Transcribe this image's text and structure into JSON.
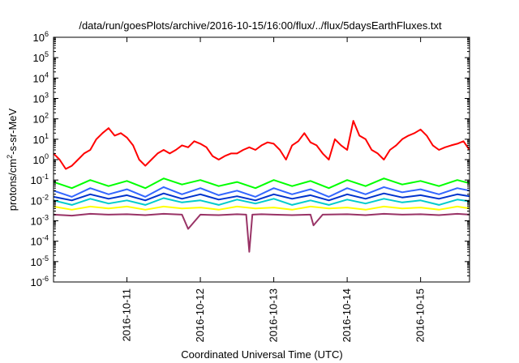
{
  "chart_data": {
    "type": "line",
    "title": "/data/run/goesPlots/archive/2016-10-15/16:00/flux/../flux/5daysEarthFluxes.txt",
    "xlabel": "Coordinated Universal Time (UTC)",
    "ylabel": {
      "pre": "protons/cm",
      "sup": "2",
      "post": "-s-sr-MeV"
    },
    "yscale": "log",
    "ylim": [
      1e-06,
      1000000.0
    ],
    "xlim": [
      "2016-10-10T00:00",
      "2016-10-15T16:00"
    ],
    "y_ticks": [
      {
        "value": 1e-06,
        "base": "10",
        "exp": "-6"
      },
      {
        "value": 1e-05,
        "base": "10",
        "exp": "-5"
      },
      {
        "value": 0.0001,
        "base": "10",
        "exp": "-4"
      },
      {
        "value": 0.001,
        "base": "10",
        "exp": "-3"
      },
      {
        "value": 0.01,
        "base": "10",
        "exp": "-2"
      },
      {
        "value": 0.1,
        "base": "10",
        "exp": "-1"
      },
      {
        "value": 1,
        "base": "10",
        "exp": "0"
      },
      {
        "value": 10.0,
        "base": "10",
        "exp": "1"
      },
      {
        "value": 100.0,
        "base": "10",
        "exp": "2"
      },
      {
        "value": 1000.0,
        "base": "10",
        "exp": "3"
      },
      {
        "value": 10000.0,
        "base": "10",
        "exp": "4"
      },
      {
        "value": 100000.0,
        "base": "10",
        "exp": "5"
      },
      {
        "value": 1000000.0,
        "base": "10",
        "exp": "6"
      }
    ],
    "x_ticks": [
      {
        "value": "2016-10-11T00:00",
        "label": "2016-10-11"
      },
      {
        "value": "2016-10-12T00:00",
        "label": "2016-10-12"
      },
      {
        "value": "2016-10-13T00:00",
        "label": "2016-10-13"
      },
      {
        "value": "2016-10-14T00:00",
        "label": "2016-10-14"
      },
      {
        "value": "2016-10-15T00:00",
        "label": "2016-10-15"
      }
    ],
    "grid": false,
    "legend": "none",
    "series": [
      {
        "color": "#ff0000",
        "x": [
          "2016-10-10T00:00",
          "2016-10-10T02:00",
          "2016-10-10T04:00",
          "2016-10-10T06:00",
          "2016-10-10T08:00",
          "2016-10-10T10:00",
          "2016-10-10T12:00",
          "2016-10-10T14:00",
          "2016-10-10T16:00",
          "2016-10-10T18:00",
          "2016-10-10T20:00",
          "2016-10-10T22:00",
          "2016-10-11T00:00",
          "2016-10-11T02:00",
          "2016-10-11T04:00",
          "2016-10-11T06:00",
          "2016-10-11T08:00",
          "2016-10-11T10:00",
          "2016-10-11T12:00",
          "2016-10-11T14:00",
          "2016-10-11T16:00",
          "2016-10-11T18:00",
          "2016-10-11T20:00",
          "2016-10-11T22:00",
          "2016-10-12T00:00",
          "2016-10-12T02:00",
          "2016-10-12T04:00",
          "2016-10-12T06:00",
          "2016-10-12T08:00",
          "2016-10-12T10:00",
          "2016-10-12T12:00",
          "2016-10-12T14:00",
          "2016-10-12T16:00",
          "2016-10-12T18:00",
          "2016-10-12T20:00",
          "2016-10-12T22:00",
          "2016-10-13T00:00",
          "2016-10-13T02:00",
          "2016-10-13T04:00",
          "2016-10-13T06:00",
          "2016-10-13T08:00",
          "2016-10-13T10:00",
          "2016-10-13T12:00",
          "2016-10-13T14:00",
          "2016-10-13T16:00",
          "2016-10-13T18:00",
          "2016-10-13T20:00",
          "2016-10-13T22:00",
          "2016-10-14T00:00",
          "2016-10-14T02:00",
          "2016-10-14T04:00",
          "2016-10-14T06:00",
          "2016-10-14T08:00",
          "2016-10-14T10:00",
          "2016-10-14T12:00",
          "2016-10-14T14:00",
          "2016-10-14T16:00",
          "2016-10-14T18:00",
          "2016-10-14T20:00",
          "2016-10-14T22:00",
          "2016-10-15T00:00",
          "2016-10-15T02:00",
          "2016-10-15T04:00",
          "2016-10-15T06:00",
          "2016-10-15T08:00",
          "2016-10-15T10:00",
          "2016-10-15T12:00",
          "2016-10-15T14:00",
          "2016-10-15T16:00"
        ],
        "values": [
          2,
          1,
          0.35,
          0.5,
          1,
          2,
          3,
          10,
          20,
          35,
          15,
          20,
          12,
          5,
          1,
          0.5,
          1,
          2,
          3,
          2,
          3,
          5,
          4,
          8,
          6,
          4,
          1.5,
          1,
          1.5,
          2,
          2,
          3,
          4,
          3,
          5,
          7,
          6,
          3,
          1,
          5,
          8,
          20,
          7,
          5,
          2,
          1,
          10,
          5,
          3,
          80,
          15,
          10,
          3,
          2,
          1,
          3,
          5,
          10,
          15,
          20,
          30,
          15,
          5,
          3,
          4,
          5,
          6,
          8,
          3
        ],
        "label_stride": 6
      },
      {
        "color": "#00ff00",
        "x": [
          "2016-10-10T00:00",
          "2016-10-10T06:00",
          "2016-10-10T12:00",
          "2016-10-10T18:00",
          "2016-10-11T00:00",
          "2016-10-11T06:00",
          "2016-10-11T12:00",
          "2016-10-11T18:00",
          "2016-10-12T00:00",
          "2016-10-12T06:00",
          "2016-10-12T12:00",
          "2016-10-12T18:00",
          "2016-10-13T00:00",
          "2016-10-13T06:00",
          "2016-10-13T12:00",
          "2016-10-13T18:00",
          "2016-10-14T00:00",
          "2016-10-14T06:00",
          "2016-10-14T12:00",
          "2016-10-14T18:00",
          "2016-10-15T00:00",
          "2016-10-15T06:00",
          "2016-10-15T12:00",
          "2016-10-15T16:00"
        ],
        "values": [
          0.08,
          0.04,
          0.1,
          0.05,
          0.09,
          0.04,
          0.12,
          0.06,
          0.1,
          0.05,
          0.08,
          0.04,
          0.1,
          0.05,
          0.09,
          0.04,
          0.1,
          0.05,
          0.12,
          0.06,
          0.09,
          0.05,
          0.1,
          0.07
        ]
      },
      {
        "color": "#00cccc",
        "x": [
          "2016-10-10T00:00",
          "2016-10-10T06:00",
          "2016-10-10T12:00",
          "2016-10-10T18:00",
          "2016-10-11T00:00",
          "2016-10-11T06:00",
          "2016-10-11T12:00",
          "2016-10-11T18:00",
          "2016-10-12T00:00",
          "2016-10-12T06:00",
          "2016-10-12T12:00",
          "2016-10-12T18:00",
          "2016-10-13T00:00",
          "2016-10-13T06:00",
          "2016-10-13T12:00",
          "2016-10-13T18:00",
          "2016-10-14T00:00",
          "2016-10-14T06:00",
          "2016-10-14T12:00",
          "2016-10-14T18:00",
          "2016-10-15T00:00",
          "2016-10-15T06:00",
          "2016-10-15T12:00",
          "2016-10-15T16:00"
        ],
        "values": [
          0.01,
          0.006,
          0.012,
          0.007,
          0.01,
          0.006,
          0.013,
          0.008,
          0.01,
          0.006,
          0.011,
          0.007,
          0.012,
          0.006,
          0.01,
          0.006,
          0.011,
          0.007,
          0.012,
          0.008,
          0.01,
          0.006,
          0.011,
          0.009
        ]
      },
      {
        "color": "#3366ff",
        "x": [
          "2016-10-10T00:00",
          "2016-10-10T06:00",
          "2016-10-10T12:00",
          "2016-10-10T18:00",
          "2016-10-11T00:00",
          "2016-10-11T06:00",
          "2016-10-11T12:00",
          "2016-10-11T18:00",
          "2016-10-12T00:00",
          "2016-10-12T06:00",
          "2016-10-12T12:00",
          "2016-10-12T18:00",
          "2016-10-13T00:00",
          "2016-10-13T06:00",
          "2016-10-13T12:00",
          "2016-10-13T18:00",
          "2016-10-14T00:00",
          "2016-10-14T06:00",
          "2016-10-14T12:00",
          "2016-10-14T18:00",
          "2016-10-15T00:00",
          "2016-10-15T06:00",
          "2016-10-15T12:00",
          "2016-10-15T16:00"
        ],
        "values": [
          0.03,
          0.015,
          0.04,
          0.02,
          0.035,
          0.015,
          0.045,
          0.02,
          0.04,
          0.018,
          0.03,
          0.015,
          0.04,
          0.02,
          0.035,
          0.015,
          0.04,
          0.02,
          0.045,
          0.025,
          0.035,
          0.02,
          0.04,
          0.03
        ]
      },
      {
        "color": "#0033cc",
        "x": [
          "2016-10-10T00:00",
          "2016-10-10T06:00",
          "2016-10-10T12:00",
          "2016-10-10T18:00",
          "2016-10-11T00:00",
          "2016-10-11T06:00",
          "2016-10-11T12:00",
          "2016-10-11T18:00",
          "2016-10-12T00:00",
          "2016-10-12T06:00",
          "2016-10-12T12:00",
          "2016-10-12T18:00",
          "2016-10-13T00:00",
          "2016-10-13T06:00",
          "2016-10-13T12:00",
          "2016-10-13T18:00",
          "2016-10-14T00:00",
          "2016-10-14T06:00",
          "2016-10-14T12:00",
          "2016-10-14T18:00",
          "2016-10-15T00:00",
          "2016-10-15T06:00",
          "2016-10-15T12:00",
          "2016-10-15T16:00"
        ],
        "values": [
          0.015,
          0.01,
          0.02,
          0.012,
          0.018,
          0.01,
          0.022,
          0.012,
          0.02,
          0.011,
          0.016,
          0.01,
          0.02,
          0.012,
          0.018,
          0.01,
          0.02,
          0.012,
          0.022,
          0.014,
          0.018,
          0.012,
          0.02,
          0.016
        ]
      },
      {
        "color": "#ffff00",
        "x": [
          "2016-10-10T00:00",
          "2016-10-10T06:00",
          "2016-10-10T12:00",
          "2016-10-10T18:00",
          "2016-10-11T00:00",
          "2016-10-11T06:00",
          "2016-10-11T12:00",
          "2016-10-11T18:00",
          "2016-10-12T00:00",
          "2016-10-12T06:00",
          "2016-10-12T12:00",
          "2016-10-12T18:00",
          "2016-10-13T00:00",
          "2016-10-13T06:00",
          "2016-10-13T12:00",
          "2016-10-13T18:00",
          "2016-10-14T00:00",
          "2016-10-14T06:00",
          "2016-10-14T12:00",
          "2016-10-14T18:00",
          "2016-10-15T00:00",
          "2016-10-15T06:00",
          "2016-10-15T12:00",
          "2016-10-15T16:00"
        ],
        "values": [
          0.005,
          0.0035,
          0.005,
          0.004,
          0.005,
          0.0035,
          0.005,
          0.004,
          0.0045,
          0.0035,
          0.005,
          0.004,
          0.0045,
          0.0035,
          0.005,
          0.004,
          0.0045,
          0.0035,
          0.005,
          0.004,
          0.0045,
          0.0035,
          0.005,
          0.004
        ]
      },
      {
        "color": "#993366",
        "x": [
          "2016-10-10T00:00",
          "2016-10-10T06:00",
          "2016-10-10T12:00",
          "2016-10-10T18:00",
          "2016-10-11T00:00",
          "2016-10-11T06:00",
          "2016-10-11T12:00",
          "2016-10-11T18:00",
          "2016-10-11T20:00",
          "2016-10-12T00:00",
          "2016-10-12T06:00",
          "2016-10-12T12:00",
          "2016-10-12T15:00",
          "2016-10-12T16:00",
          "2016-10-12T17:00",
          "2016-10-12T20:00",
          "2016-10-13T00:00",
          "2016-10-13T06:00",
          "2016-10-13T12:00",
          "2016-10-13T13:00",
          "2016-10-13T16:00",
          "2016-10-14T00:00",
          "2016-10-14T06:00",
          "2016-10-14T12:00",
          "2016-10-14T18:00",
          "2016-10-15T00:00",
          "2016-10-15T06:00",
          "2016-10-15T12:00",
          "2016-10-15T16:00"
        ],
        "values": [
          0.002,
          0.0018,
          0.0022,
          0.002,
          0.0021,
          0.0019,
          0.0022,
          0.002,
          0.0004,
          0.002,
          0.0019,
          0.0021,
          0.002,
          3e-05,
          0.002,
          0.0021,
          0.002,
          0.0019,
          0.002,
          0.0006,
          0.002,
          0.0021,
          0.0019,
          0.0022,
          0.002,
          0.0021,
          0.0019,
          0.0022,
          0.002
        ]
      }
    ]
  }
}
